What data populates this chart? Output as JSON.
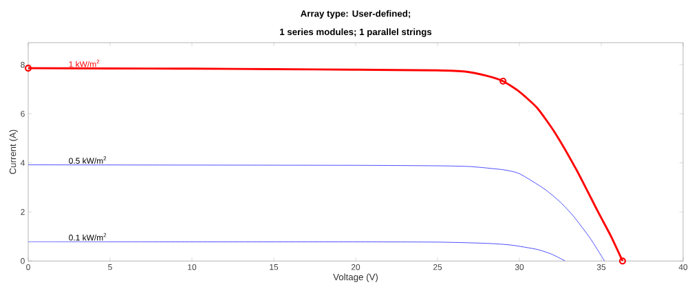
{
  "chart_data": {
    "type": "line",
    "title": "Array type: User-defined;",
    "subtitle": "1 series modules; 1 parallel strings",
    "xlabel": "Voltage (V)",
    "ylabel": "Current (A)",
    "xlim": [
      0,
      40
    ],
    "ylim": [
      0,
      8.9
    ],
    "xticks": [
      0,
      5,
      10,
      15,
      20,
      25,
      30,
      35,
      40
    ],
    "yticks": [
      0,
      2,
      4,
      6,
      8
    ],
    "grid": false,
    "legend": false,
    "marker": "none",
    "line_style": "solid",
    "series": [
      {
        "name": "1 kW/m$^{2}$",
        "color": "#ff0000",
        "x": [
          0,
          5,
          10,
          15,
          20,
          25,
          26.7,
          28,
          29,
          30,
          31.1,
          32.2,
          33.5,
          34.8,
          35.6,
          36.3
        ],
        "values": [
          7.86,
          7.85,
          7.84,
          7.82,
          7.8,
          7.77,
          7.72,
          7.55,
          7.33,
          6.9,
          6.23,
          5.2,
          3.7,
          2.01,
          1.0,
          0
        ]
      },
      {
        "name": "0.5 kW/m$^{2}$",
        "color": "#2020ff",
        "x": [
          0,
          10,
          20,
          25,
          27,
          29,
          30,
          31.5,
          32.5,
          33.3,
          34.3,
          35.2
        ],
        "values": [
          3.92,
          3.91,
          3.9,
          3.88,
          3.85,
          3.72,
          3.56,
          2.95,
          2.4,
          1.83,
          0.95,
          0
        ]
      },
      {
        "name": "0.1 kW/m$^{2}$",
        "color": "#2020ff",
        "x": [
          0,
          10,
          20,
          25,
          28,
          29.5,
          31.1,
          32,
          32.8
        ],
        "values": [
          0.79,
          0.78,
          0.78,
          0.77,
          0.72,
          0.65,
          0.47,
          0.27,
          0
        ]
      },
      {
        "type": "scatter",
        "marker": "circle",
        "color": "#ff0000",
        "x": [
          0,
          29,
          36.3
        ],
        "values": [
          7.86,
          7.33,
          0
        ]
      }
    ]
  }
}
